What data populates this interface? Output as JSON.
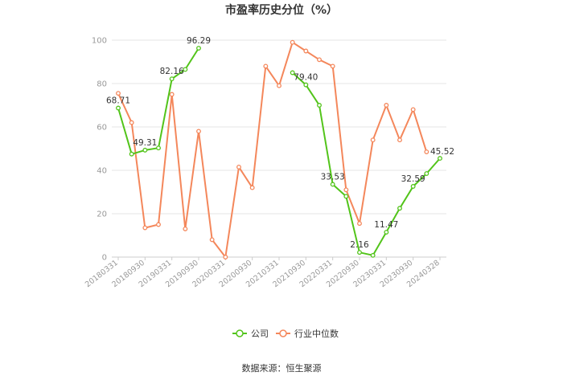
{
  "chart_data": {
    "type": "line",
    "title": "市盈率历史分位（%）",
    "ylim": [
      0,
      100
    ],
    "yticks": [
      0,
      20,
      40,
      60,
      80,
      100
    ],
    "grid": true,
    "legend_placement": "bottom-center",
    "x": [
      "20180331",
      "20180630",
      "20180930",
      "20181231",
      "20190331",
      "20190630",
      "20190930",
      "20191231",
      "20200331",
      "20200630",
      "20200930",
      "20201231",
      "20210331",
      "20210630",
      "20210930",
      "20211231",
      "20220331",
      "20220630",
      "20220930",
      "20221231",
      "20230331",
      "20230630",
      "20230930",
      "20231231",
      "20240328"
    ],
    "xtick_labels": [
      "20180331",
      "20180930",
      "20190331",
      "20190930",
      "20200331",
      "20200930",
      "20210331",
      "20210930",
      "20220331",
      "20220930",
      "20230331",
      "20230930",
      "20240328"
    ],
    "series": [
      {
        "name": "公司",
        "color": "#52c41a",
        "values": [
          68.71,
          47.5,
          49.31,
          50.3,
          82.16,
          86.5,
          96.29,
          null,
          null,
          null,
          null,
          null,
          null,
          85.0,
          79.4,
          70.0,
          33.53,
          28.0,
          2.16,
          0.8,
          11.47,
          22.5,
          32.59,
          38.5,
          45.52
        ]
      },
      {
        "name": "行业中位数",
        "color": "#f4875b",
        "values": [
          75.5,
          62.0,
          13.5,
          15.0,
          75.0,
          13.0,
          58.0,
          8.0,
          0.0,
          41.5,
          32.0,
          88.0,
          79.0,
          99.0,
          95.0,
          91.0,
          88.0,
          31.0,
          15.5,
          54.0,
          70.0,
          54.0,
          68.0,
          48.5,
          null
        ]
      }
    ],
    "data_labels": [
      {
        "x": "20180331",
        "text": "68.71"
      },
      {
        "x": "20180930",
        "text": "49.31"
      },
      {
        "x": "20190331",
        "text": "82.16"
      },
      {
        "x": "20190930",
        "text": "96.29"
      },
      {
        "x": "20210930",
        "text": "79.40"
      },
      {
        "x": "20220331",
        "text": "33.53"
      },
      {
        "x": "20220930",
        "text": "2.16"
      },
      {
        "x": "20230331",
        "text": "11.47"
      },
      {
        "x": "20230930",
        "text": "32.59"
      },
      {
        "x": "20240328",
        "text": "45.52"
      }
    ]
  },
  "source_text": "数据来源：恒生聚源"
}
